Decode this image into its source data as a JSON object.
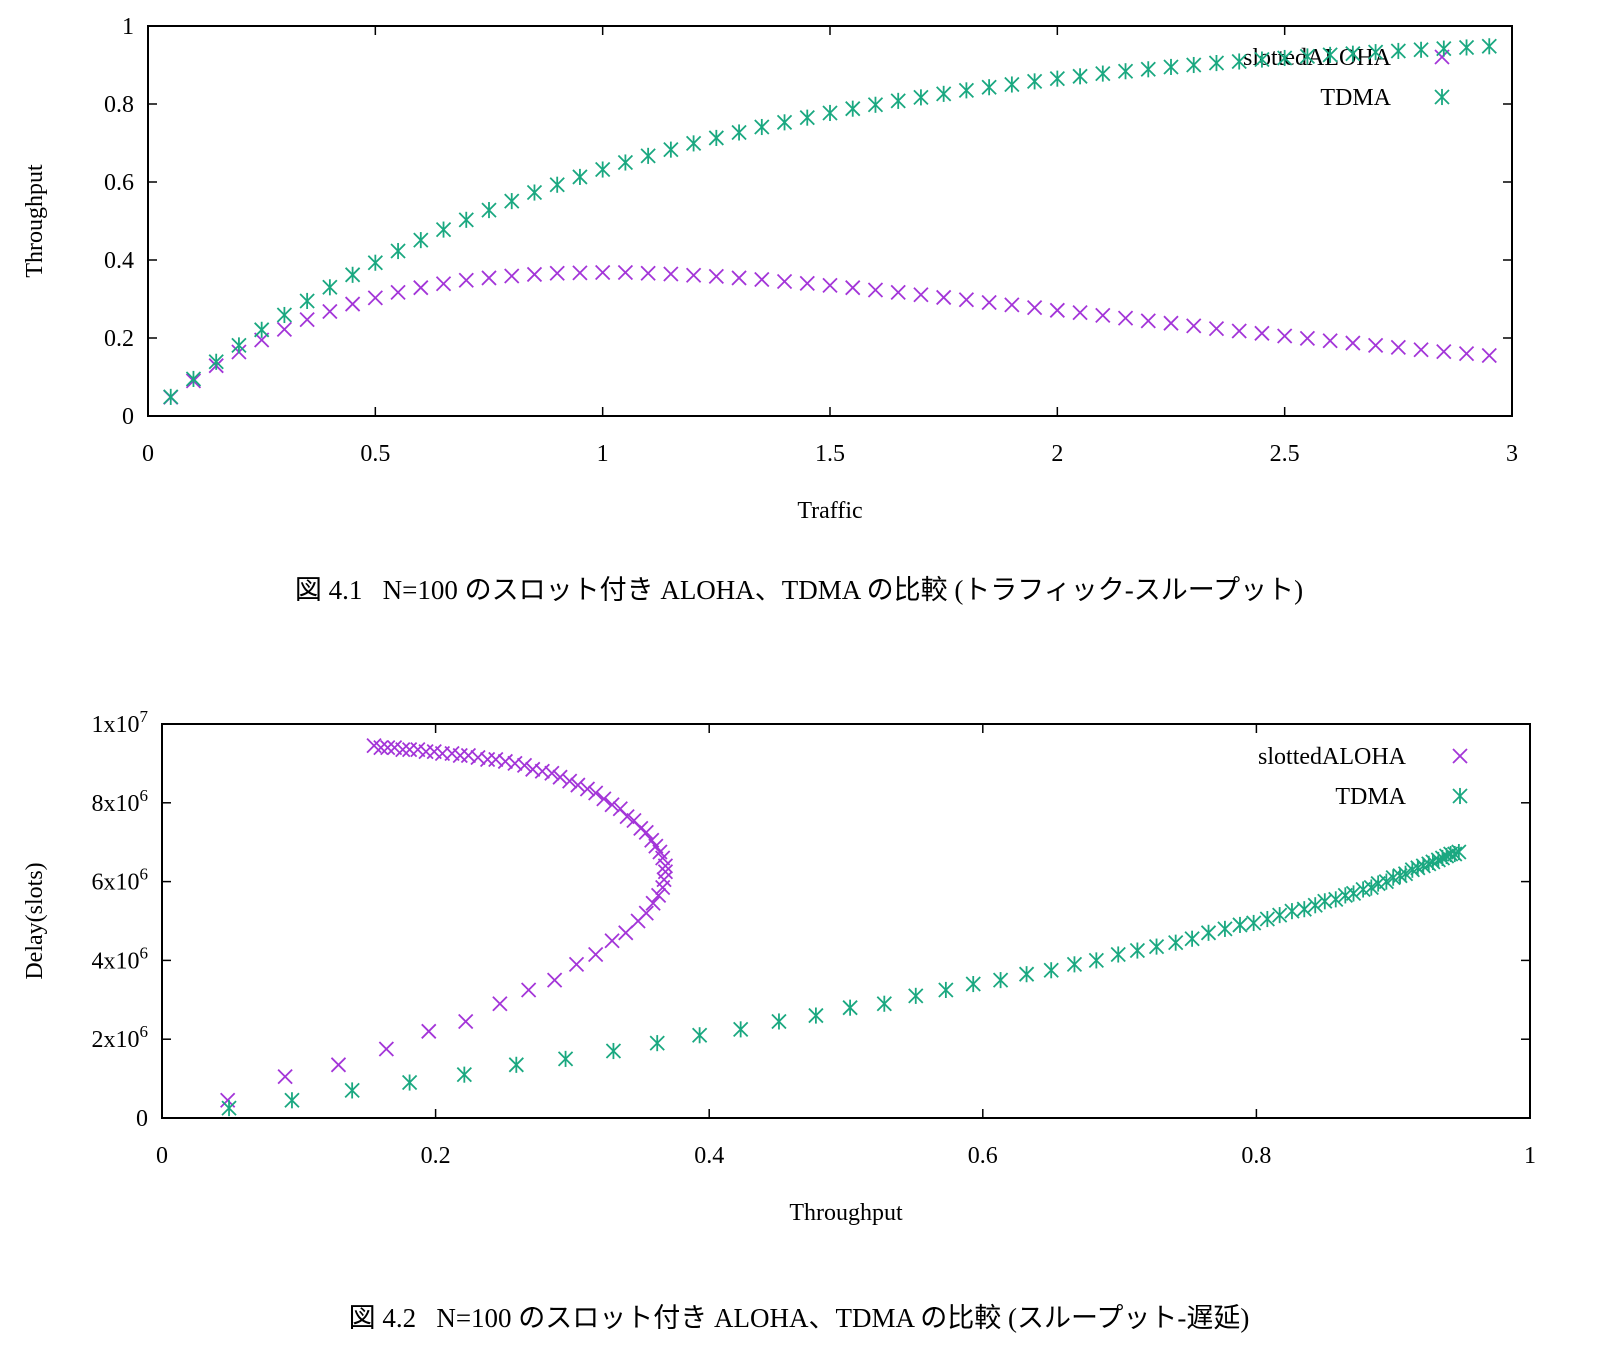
{
  "colors": {
    "aloha": "#a335d8",
    "tdma": "#1aa880",
    "axis": "#000000"
  },
  "figures": [
    {
      "label": "図 4.1",
      "caption": "N=100 のスロット付き ALOHA、TDMA の比較 (トラフィック-スループット)"
    },
    {
      "label": "図 4.2",
      "caption": "N=100 のスロット付き ALOHA、TDMA の比較 (スループット-遅延)"
    }
  ],
  "chart_data": [
    {
      "type": "scatter",
      "title": "",
      "xlabel": "Traffic",
      "ylabel": "Throughput",
      "xlim": [
        0,
        3
      ],
      "ylim": [
        0,
        1
      ],
      "xticks": [
        "0",
        "0.5",
        "1",
        "1.5",
        "2",
        "2.5",
        "3"
      ],
      "yticks": [
        "0",
        "0.2",
        "0.4",
        "0.6",
        "0.8",
        "1"
      ],
      "legend_position": "top-right",
      "series": [
        {
          "name": "slottedALOHA",
          "marker": "x",
          "color": "#a335d8",
          "x": [
            0.05,
            0.1,
            0.15,
            0.2,
            0.25,
            0.3,
            0.35,
            0.4,
            0.45,
            0.5,
            0.55,
            0.6,
            0.65,
            0.7,
            0.75,
            0.8,
            0.85,
            0.9,
            0.95,
            1.0,
            1.05,
            1.1,
            1.15,
            1.2,
            1.25,
            1.3,
            1.35,
            1.4,
            1.45,
            1.5,
            1.55,
            1.6,
            1.65,
            1.7,
            1.75,
            1.8,
            1.85,
            1.9,
            1.95,
            2.0,
            2.05,
            2.1,
            2.15,
            2.2,
            2.25,
            2.3,
            2.35,
            2.4,
            2.45,
            2.5,
            2.55,
            2.6,
            2.65,
            2.7,
            2.75,
            2.8,
            2.85,
            2.9,
            2.95
          ],
          "y": [
            0.048,
            0.09,
            0.129,
            0.164,
            0.195,
            0.222,
            0.247,
            0.268,
            0.287,
            0.303,
            0.317,
            0.329,
            0.339,
            0.348,
            0.354,
            0.359,
            0.363,
            0.366,
            0.367,
            0.368,
            0.368,
            0.366,
            0.364,
            0.361,
            0.358,
            0.354,
            0.35,
            0.345,
            0.34,
            0.335,
            0.329,
            0.323,
            0.317,
            0.311,
            0.304,
            0.298,
            0.291,
            0.285,
            0.278,
            0.271,
            0.265,
            0.258,
            0.251,
            0.244,
            0.238,
            0.231,
            0.224,
            0.218,
            0.212,
            0.205,
            0.199,
            0.193,
            0.187,
            0.181,
            0.176,
            0.17,
            0.165,
            0.16,
            0.155
          ]
        },
        {
          "name": "TDMA",
          "marker": "asterisk",
          "color": "#1aa880",
          "x": [
            0.05,
            0.1,
            0.15,
            0.2,
            0.25,
            0.3,
            0.35,
            0.4,
            0.45,
            0.5,
            0.55,
            0.6,
            0.65,
            0.7,
            0.75,
            0.8,
            0.85,
            0.9,
            0.95,
            1.0,
            1.05,
            1.1,
            1.15,
            1.2,
            1.25,
            1.3,
            1.35,
            1.4,
            1.45,
            1.5,
            1.55,
            1.6,
            1.65,
            1.7,
            1.75,
            1.8,
            1.85,
            1.9,
            1.95,
            2.0,
            2.05,
            2.1,
            2.15,
            2.2,
            2.25,
            2.3,
            2.35,
            2.4,
            2.45,
            2.5,
            2.55,
            2.6,
            2.65,
            2.7,
            2.75,
            2.8,
            2.85,
            2.9,
            2.95
          ],
          "y": [
            0.049,
            0.095,
            0.139,
            0.181,
            0.221,
            0.259,
            0.295,
            0.33,
            0.362,
            0.393,
            0.423,
            0.451,
            0.478,
            0.503,
            0.528,
            0.551,
            0.573,
            0.593,
            0.613,
            0.632,
            0.65,
            0.667,
            0.683,
            0.699,
            0.713,
            0.727,
            0.741,
            0.753,
            0.765,
            0.777,
            0.788,
            0.798,
            0.808,
            0.817,
            0.826,
            0.835,
            0.843,
            0.85,
            0.858,
            0.865,
            0.871,
            0.878,
            0.884,
            0.889,
            0.895,
            0.9,
            0.905,
            0.909,
            0.914,
            0.918,
            0.922,
            0.926,
            0.929,
            0.933,
            0.936,
            0.939,
            0.942,
            0.945,
            0.948
          ]
        }
      ]
    },
    {
      "type": "scatter",
      "title": "",
      "xlabel": "Throughput",
      "ylabel": "Delay(slots)",
      "xlim": [
        0,
        1
      ],
      "ylim": [
        0,
        10000000
      ],
      "xticks": [
        "0",
        "0.2",
        "0.4",
        "0.6",
        "0.8",
        "1"
      ],
      "yticks": [
        {
          "base": "0",
          "exp": ""
        },
        {
          "base": "2x10",
          "exp": "6"
        },
        {
          "base": "4x10",
          "exp": "6"
        },
        {
          "base": "6x10",
          "exp": "6"
        },
        {
          "base": "8x10",
          "exp": "6"
        },
        {
          "base": "1x10",
          "exp": "7"
        }
      ],
      "legend_position": "top-right",
      "series": [
        {
          "name": "slottedALOHA",
          "marker": "x",
          "color": "#a335d8",
          "x": [
            0.048,
            0.09,
            0.129,
            0.164,
            0.195,
            0.222,
            0.247,
            0.268,
            0.287,
            0.303,
            0.317,
            0.329,
            0.339,
            0.348,
            0.354,
            0.359,
            0.363,
            0.366,
            0.367,
            0.368,
            0.368,
            0.366,
            0.364,
            0.361,
            0.358,
            0.354,
            0.35,
            0.345,
            0.34,
            0.335,
            0.329,
            0.323,
            0.317,
            0.311,
            0.304,
            0.298,
            0.291,
            0.285,
            0.278,
            0.271,
            0.265,
            0.258,
            0.251,
            0.244,
            0.238,
            0.231,
            0.224,
            0.218,
            0.212,
            0.205,
            0.199,
            0.193,
            0.187,
            0.181,
            0.176,
            0.17,
            0.165,
            0.16,
            0.155
          ],
          "y": [
            450000,
            1050000,
            1350000,
            1750000,
            2200000,
            2450000,
            2900000,
            3250000,
            3500000,
            3900000,
            4150000,
            4500000,
            4700000,
            5000000,
            5200000,
            5450000,
            5650000,
            5850000,
            6050000,
            6250000,
            6400000,
            6600000,
            6750000,
            6900000,
            7050000,
            7250000,
            7350000,
            7550000,
            7650000,
            7850000,
            7950000,
            8100000,
            8250000,
            8350000,
            8450000,
            8550000,
            8650000,
            8750000,
            8800000,
            8850000,
            8950000,
            9000000,
            9050000,
            9100000,
            9100000,
            9150000,
            9200000,
            9200000,
            9250000,
            9250000,
            9300000,
            9300000,
            9350000,
            9350000,
            9350000,
            9400000,
            9400000,
            9400000,
            9450000
          ]
        },
        {
          "name": "TDMA",
          "marker": "asterisk",
          "color": "#1aa880",
          "x": [
            0.049,
            0.095,
            0.139,
            0.181,
            0.221,
            0.259,
            0.295,
            0.33,
            0.362,
            0.393,
            0.423,
            0.451,
            0.478,
            0.503,
            0.528,
            0.551,
            0.573,
            0.593,
            0.613,
            0.632,
            0.65,
            0.667,
            0.683,
            0.699,
            0.713,
            0.727,
            0.741,
            0.753,
            0.765,
            0.777,
            0.788,
            0.798,
            0.808,
            0.817,
            0.826,
            0.835,
            0.843,
            0.85,
            0.858,
            0.865,
            0.871,
            0.878,
            0.884,
            0.889,
            0.895,
            0.9,
            0.905,
            0.909,
            0.914,
            0.918,
            0.922,
            0.926,
            0.929,
            0.933,
            0.936,
            0.939,
            0.942,
            0.945,
            0.948
          ],
          "y": [
            250000,
            450000,
            700000,
            900000,
            1100000,
            1350000,
            1500000,
            1700000,
            1900000,
            2100000,
            2250000,
            2450000,
            2600000,
            2800000,
            2900000,
            3100000,
            3250000,
            3400000,
            3500000,
            3650000,
            3750000,
            3900000,
            4000000,
            4150000,
            4250000,
            4350000,
            4450000,
            4550000,
            4700000,
            4800000,
            4900000,
            4950000,
            5050000,
            5150000,
            5250000,
            5300000,
            5400000,
            5500000,
            5550000,
            5650000,
            5700000,
            5800000,
            5850000,
            5950000,
            6000000,
            6100000,
            6150000,
            6200000,
            6300000,
            6350000,
            6400000,
            6450000,
            6500000,
            6550000,
            6600000,
            6650000,
            6700000,
            6700000,
            6750000
          ]
        }
      ]
    }
  ]
}
